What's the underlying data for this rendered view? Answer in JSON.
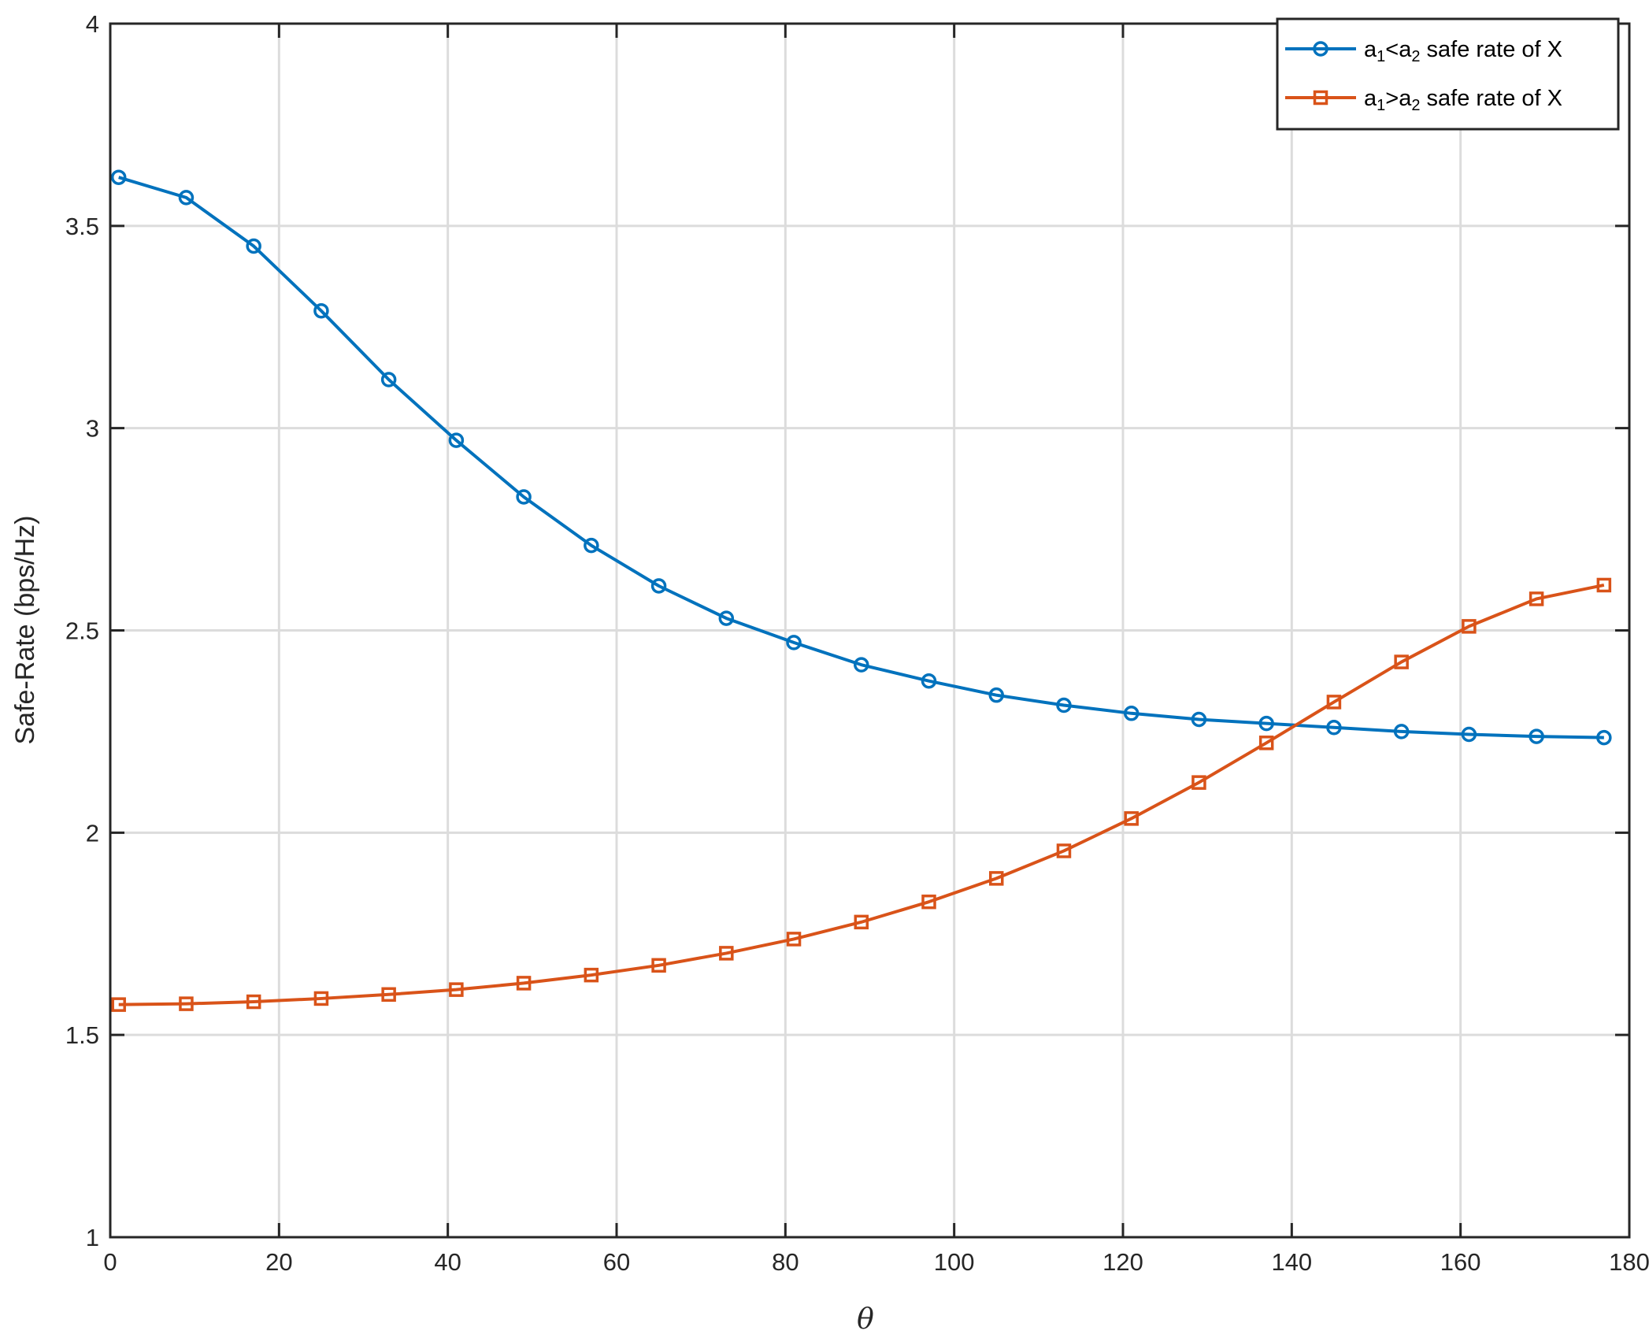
{
  "chart_data": {
    "type": "line",
    "xlabel": "θ",
    "ylabel": "Safe-Rate (bps/Hz)",
    "xlim": [
      0,
      180
    ],
    "ylim": [
      1,
      4
    ],
    "xticks": [
      0,
      20,
      40,
      60,
      80,
      100,
      120,
      140,
      160,
      180
    ],
    "yticks": [
      1,
      1.5,
      2,
      2.5,
      3,
      3.5,
      4
    ],
    "grid": true,
    "legend_position": "top-right",
    "x": [
      1,
      9,
      17,
      25,
      33,
      41,
      49,
      57,
      65,
      73,
      81,
      89,
      97,
      105,
      113,
      121,
      129,
      137,
      145,
      153,
      161,
      169,
      177
    ],
    "series": [
      {
        "name": "a1<a2 safe rate of X",
        "legend": {
          "a": "a",
          "sub1": "1",
          "op": "<",
          "b": "a",
          "sub2": "2",
          "rest": " safe rate of X"
        },
        "color": "#0072BD",
        "marker": "circle",
        "values": [
          3.62,
          3.57,
          3.45,
          3.29,
          3.12,
          2.97,
          2.83,
          2.71,
          2.61,
          2.53,
          2.47,
          2.415,
          2.375,
          2.34,
          2.315,
          2.295,
          2.28,
          2.27,
          2.26,
          2.25,
          2.243,
          2.238,
          2.235
        ]
      },
      {
        "name": "a1>a2 safe rate of X",
        "legend": {
          "a": "a",
          "sub1": "1",
          "op": ">",
          "b": "a",
          "sub2": "2",
          "rest": " safe rate of X"
        },
        "color": "#D95319",
        "marker": "square",
        "values": [
          1.575,
          1.577,
          1.582,
          1.59,
          1.6,
          1.612,
          1.628,
          1.648,
          1.672,
          1.702,
          1.737,
          1.779,
          1.829,
          1.887,
          1.955,
          2.035,
          2.124,
          2.222,
          2.323,
          2.422,
          2.51,
          2.578,
          2.612
        ]
      }
    ]
  }
}
